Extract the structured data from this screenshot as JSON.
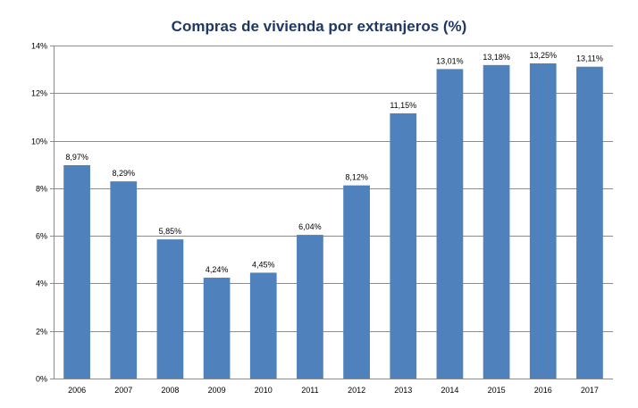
{
  "chart_data": {
    "type": "bar",
    "title": "Compras de vivienda por extranjeros (%)",
    "xlabel": "",
    "ylabel": "",
    "categories": [
      "2006",
      "2007",
      "2008",
      "2009",
      "2010",
      "2011",
      "2012",
      "2013",
      "2014",
      "2015",
      "2016",
      "2017"
    ],
    "values": [
      8.97,
      8.29,
      5.85,
      4.24,
      4.45,
      6.04,
      8.12,
      11.15,
      13.01,
      13.18,
      13.25,
      13.11
    ],
    "data_labels": [
      "8,97%",
      "8,29%",
      "5,85%",
      "4,24%",
      "4,45%",
      "6,04%",
      "8,12%",
      "11,15%",
      "13,01%",
      "13,18%",
      "13,25%",
      "13,11%"
    ],
    "ylim": [
      0,
      14
    ],
    "yticks": [
      0,
      2,
      4,
      6,
      8,
      10,
      12,
      14
    ],
    "ytick_labels": [
      "0%",
      "2%",
      "4%",
      "6%",
      "8%",
      "10%",
      "12%",
      "14%"
    ],
    "grid": true,
    "legend": "none",
    "colors": {
      "bar": "#4f81bd",
      "grid": "#8c8c8c",
      "title": "#1f3864"
    }
  }
}
